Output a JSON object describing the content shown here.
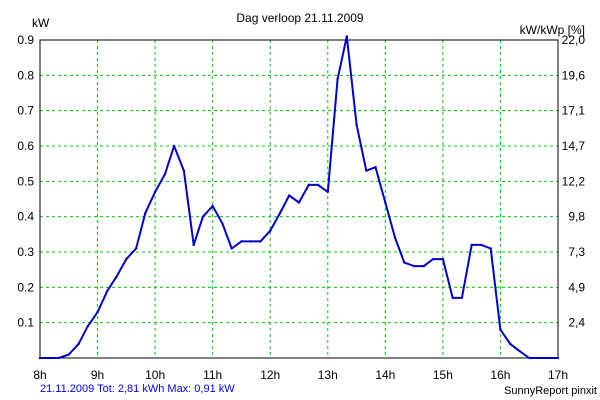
{
  "chart_data": {
    "type": "line",
    "title": "Dag  verloop 21.11.2009",
    "ylabel_left": "kW",
    "ylabel_right": "kW/kWp [%]",
    "x_ticks": [
      "8h",
      "9h",
      "10h",
      "11h",
      "12h",
      "13h",
      "14h",
      "15h",
      "16h",
      "17h"
    ],
    "y_ticks_left": [
      "0.1",
      "0.2",
      "0.3",
      "0.4",
      "0.5",
      "0.6",
      "0.7",
      "0.8",
      "0.9"
    ],
    "y_ticks_right": [
      "2,4",
      "4,9",
      "7,3",
      "9,8",
      "12,2",
      "14,7",
      "17,1",
      "19,6",
      "22,0"
    ],
    "xlim": [
      8,
      17
    ],
    "ylim": [
      0,
      0.9
    ],
    "grid": true,
    "series": [
      {
        "color": "#0000cc",
        "x": [
          8.0,
          8.17,
          8.33,
          8.5,
          8.67,
          8.83,
          9.0,
          9.17,
          9.33,
          9.5,
          9.67,
          9.83,
          10.0,
          10.17,
          10.33,
          10.5,
          10.67,
          10.83,
          11.0,
          11.17,
          11.33,
          11.5,
          11.67,
          11.83,
          12.0,
          12.17,
          12.33,
          12.5,
          12.67,
          12.83,
          13.0,
          13.17,
          13.33,
          13.5,
          13.67,
          13.83,
          14.0,
          14.17,
          14.33,
          14.5,
          14.67,
          14.83,
          15.0,
          15.17,
          15.33,
          15.5,
          15.67,
          15.83,
          16.0,
          16.17,
          16.33,
          16.5,
          16.67,
          16.83,
          17.0
        ],
        "y": [
          0.0,
          0.0,
          0.0,
          0.01,
          0.04,
          0.09,
          0.13,
          0.19,
          0.23,
          0.28,
          0.31,
          0.41,
          0.47,
          0.52,
          0.6,
          0.53,
          0.32,
          0.4,
          0.43,
          0.38,
          0.31,
          0.33,
          0.33,
          0.33,
          0.36,
          0.41,
          0.46,
          0.44,
          0.49,
          0.49,
          0.47,
          0.79,
          0.91,
          0.66,
          0.53,
          0.54,
          0.44,
          0.34,
          0.27,
          0.26,
          0.26,
          0.28,
          0.28,
          0.17,
          0.17,
          0.32,
          0.32,
          0.31,
          0.08,
          0.04,
          0.02,
          0.0,
          0.0,
          0.0,
          0.0
        ]
      }
    ]
  },
  "footer": {
    "left": "21.11.2009 Tot: 2,81 kWh Max: 0,91 kW",
    "right": "SunnyReport pinxit"
  },
  "colors": {
    "line": "#0000cc",
    "grid": "#00cc00",
    "footer_left": "#0000ff"
  }
}
